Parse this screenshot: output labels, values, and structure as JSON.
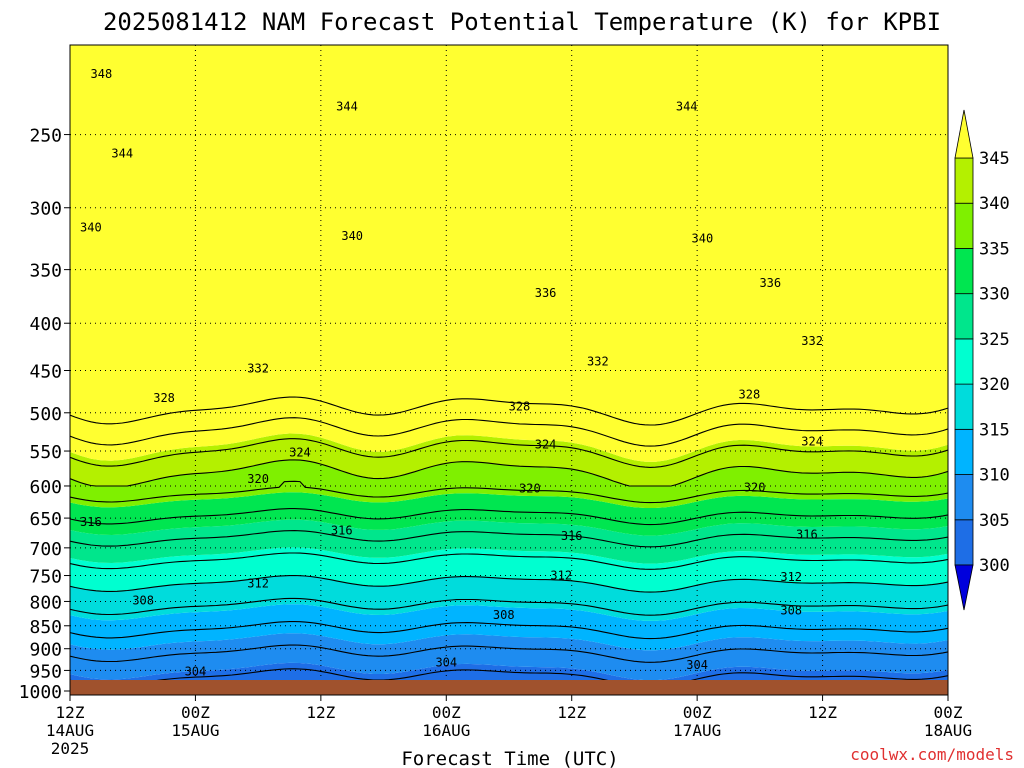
{
  "chart_data": {
    "type": "heatmap",
    "title": "2025081412 NAM Forecast Potential Temperature (K) for KPBI",
    "xlabel": "Forecast Time (UTC)",
    "ylabel": "",
    "x_ticks": [
      {
        "hour": 0,
        "line1": "12Z",
        "line2": "14AUG",
        "line3": "2025"
      },
      {
        "hour": 12,
        "line1": "00Z",
        "line2": "15AUG",
        "line3": ""
      },
      {
        "hour": 24,
        "line1": "12Z",
        "line2": "",
        "line3": ""
      },
      {
        "hour": 36,
        "line1": "00Z",
        "line2": "16AUG",
        "line3": ""
      },
      {
        "hour": 48,
        "line1": "12Z",
        "line2": "",
        "line3": ""
      },
      {
        "hour": 60,
        "line1": "00Z",
        "line2": "17AUG",
        "line3": ""
      },
      {
        "hour": 72,
        "line1": "12Z",
        "line2": "",
        "line3": ""
      },
      {
        "hour": 84,
        "line1": "00Z",
        "line2": "18AUG",
        "line3": ""
      }
    ],
    "xlim_hours": [
      0,
      84
    ],
    "y_ticks": [
      "250",
      "300",
      "350",
      "400",
      "450",
      "500",
      "550",
      "600",
      "650",
      "700",
      "750",
      "800",
      "850",
      "900",
      "950",
      "1000"
    ],
    "y_tick_values": [
      250,
      300,
      350,
      400,
      450,
      500,
      550,
      600,
      650,
      700,
      750,
      800,
      850,
      900,
      950,
      1000
    ],
    "ylim": [
      1010,
      200
    ],
    "yscale": "log",
    "grid": true,
    "colorbar": {
      "levels": [
        300,
        305,
        310,
        315,
        320,
        325,
        330,
        335,
        340,
        345
      ],
      "labels": [
        "300",
        "305",
        "310",
        "315",
        "320",
        "325",
        "330",
        "335",
        "340",
        "345"
      ],
      "colors": [
        "#1e3cff",
        "#1e6ee6",
        "#1e8cf0",
        "#00b4ff",
        "#00dcdc",
        "#00ffd0",
        "#00e68c",
        "#00e650",
        "#7ff000",
        "#b4f000",
        "#ffff30"
      ],
      "bottom_arrow_color": "#0000dc",
      "top_arrow_color": "#ffff30"
    },
    "contour_interval_k": 4,
    "contour_labels": [
      {
        "value": "348",
        "hour": 3.0,
        "p": 215
      },
      {
        "value": "344",
        "hour": 26.5,
        "p": 233
      },
      {
        "value": "344",
        "hour": 5.0,
        "p": 262
      },
      {
        "value": "344",
        "hour": 59.0,
        "p": 233
      },
      {
        "value": "340",
        "hour": 2.0,
        "p": 315
      },
      {
        "value": "340",
        "hour": 27.0,
        "p": 322
      },
      {
        "value": "340",
        "hour": 60.5,
        "p": 324
      },
      {
        "value": "336",
        "hour": 45.5,
        "p": 371
      },
      {
        "value": "336",
        "hour": 67.0,
        "p": 362
      },
      {
        "value": "332",
        "hour": 18.0,
        "p": 448
      },
      {
        "value": "332",
        "hour": 50.5,
        "p": 440
      },
      {
        "value": "332",
        "hour": 71.0,
        "p": 418
      },
      {
        "value": "328",
        "hour": 9.0,
        "p": 482
      },
      {
        "value": "328",
        "hour": 43.0,
        "p": 492
      },
      {
        "value": "328",
        "hour": 65.0,
        "p": 478
      },
      {
        "value": "324",
        "hour": 22.0,
        "p": 552
      },
      {
        "value": "324",
        "hour": 45.5,
        "p": 541
      },
      {
        "value": "324",
        "hour": 71.0,
        "p": 537
      },
      {
        "value": "320",
        "hour": 18.0,
        "p": 590
      },
      {
        "value": "320",
        "hour": 44.0,
        "p": 604
      },
      {
        "value": "320",
        "hour": 65.5,
        "p": 602
      },
      {
        "value": "316",
        "hour": 2.0,
        "p": 656
      },
      {
        "value": "316",
        "hour": 26.0,
        "p": 670
      },
      {
        "value": "316",
        "hour": 48.0,
        "p": 680
      },
      {
        "value": "316",
        "hour": 70.5,
        "p": 677
      },
      {
        "value": "312",
        "hour": 18.0,
        "p": 765
      },
      {
        "value": "312",
        "hour": 47.0,
        "p": 750
      },
      {
        "value": "312",
        "hour": 69.0,
        "p": 753
      },
      {
        "value": "308",
        "hour": 7.0,
        "p": 798
      },
      {
        "value": "308",
        "hour": 41.5,
        "p": 828
      },
      {
        "value": "308",
        "hour": 69.0,
        "p": 818
      },
      {
        "value": "304",
        "hour": 12.0,
        "p": 953
      },
      {
        "value": "304",
        "hour": 36.0,
        "p": 932
      },
      {
        "value": "304",
        "hour": 60.0,
        "p": 937
      }
    ]
  },
  "watermark": "coolwx.com/models",
  "terrain_color": "#a0522d"
}
